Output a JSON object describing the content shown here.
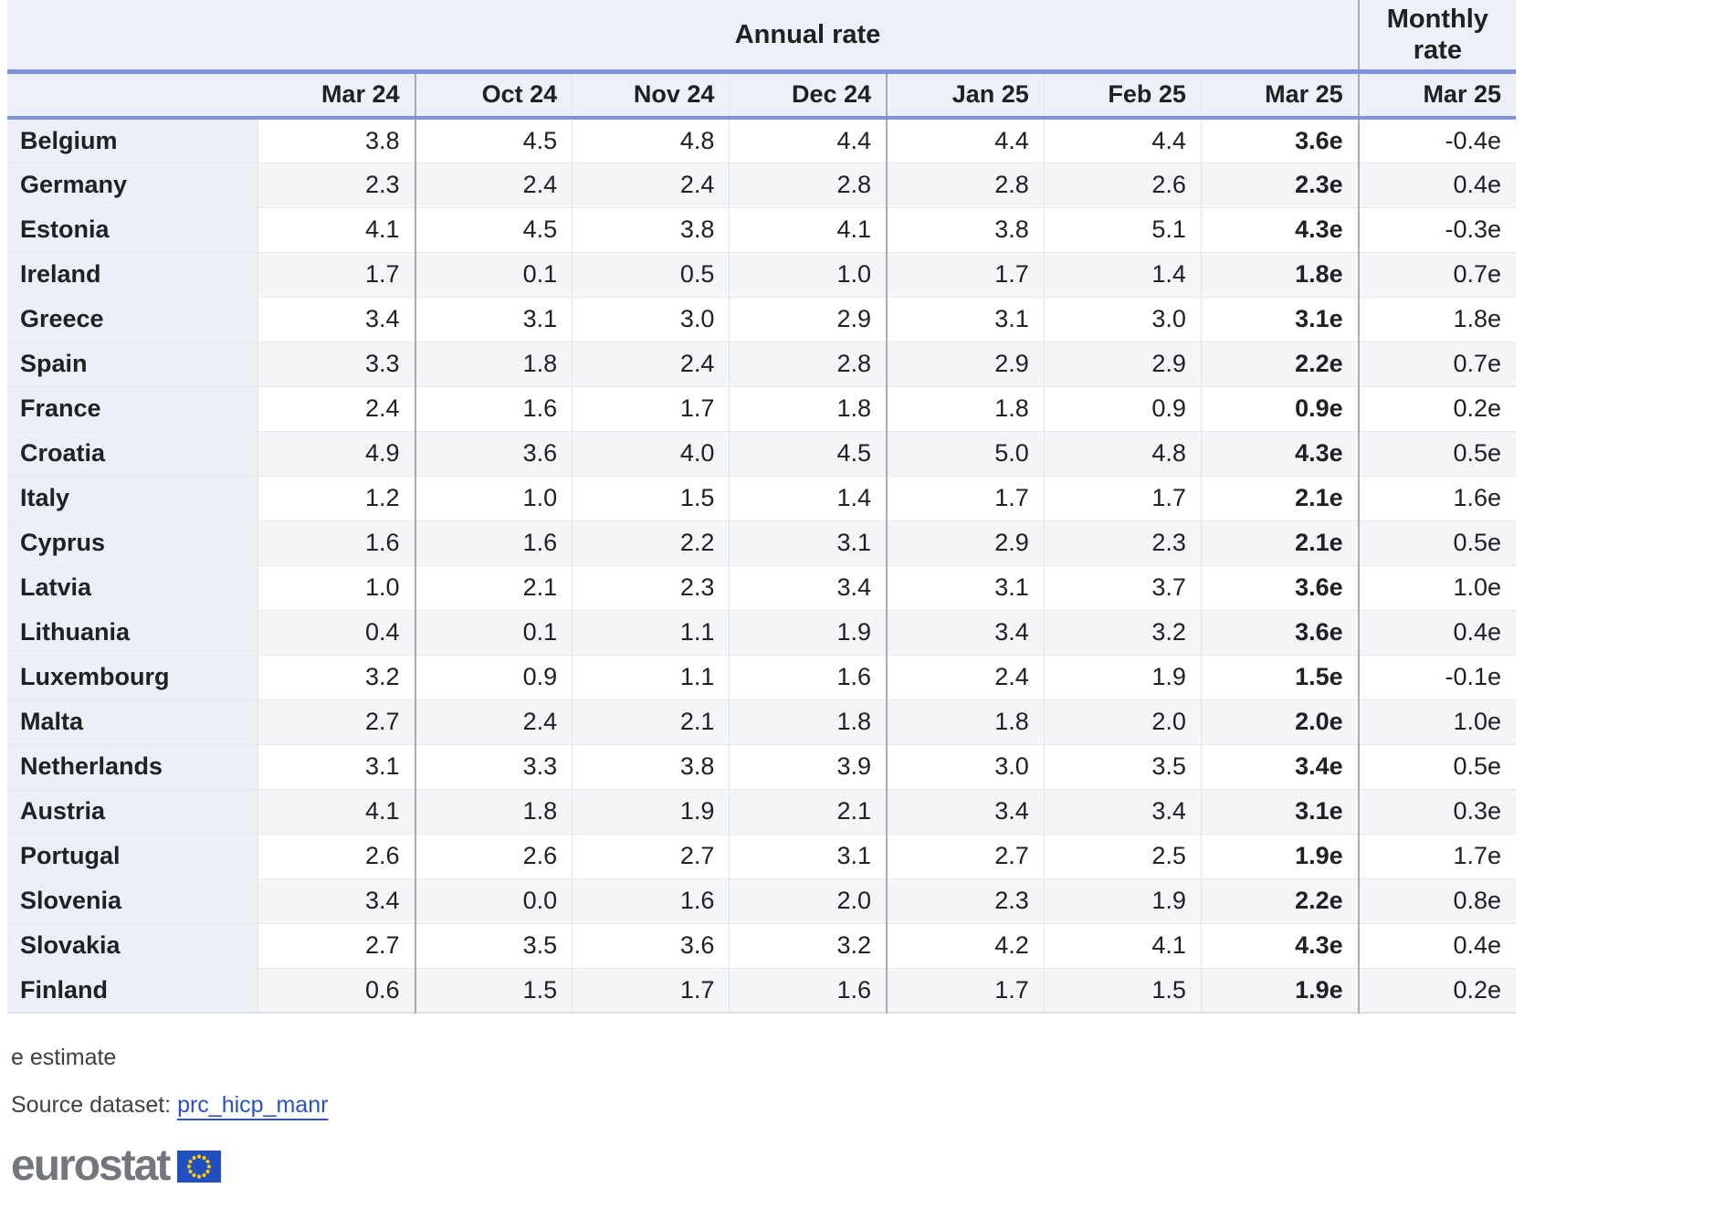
{
  "chart_data": {
    "type": "table",
    "annual_header": "Annual rate",
    "monthly_header": "Monthly rate",
    "annual_columns": [
      "Mar 24",
      "Oct 24",
      "Nov 24",
      "Dec 24",
      "Jan 25",
      "Feb 25",
      "Mar 25"
    ],
    "monthly_column": "Mar 25",
    "rows": [
      {
        "country": "Belgium",
        "values": [
          "3.8",
          "4.5",
          "4.8",
          "4.4",
          "4.4",
          "4.4",
          "3.6e"
        ],
        "monthly": "-0.4e"
      },
      {
        "country": "Germany",
        "values": [
          "2.3",
          "2.4",
          "2.4",
          "2.8",
          "2.8",
          "2.6",
          "2.3e"
        ],
        "monthly": "0.4e"
      },
      {
        "country": "Estonia",
        "values": [
          "4.1",
          "4.5",
          "3.8",
          "4.1",
          "3.8",
          "5.1",
          "4.3e"
        ],
        "monthly": "-0.3e"
      },
      {
        "country": "Ireland",
        "values": [
          "1.7",
          "0.1",
          "0.5",
          "1.0",
          "1.7",
          "1.4",
          "1.8e"
        ],
        "monthly": "0.7e"
      },
      {
        "country": "Greece",
        "values": [
          "3.4",
          "3.1",
          "3.0",
          "2.9",
          "3.1",
          "3.0",
          "3.1e"
        ],
        "monthly": "1.8e"
      },
      {
        "country": "Spain",
        "values": [
          "3.3",
          "1.8",
          "2.4",
          "2.8",
          "2.9",
          "2.9",
          "2.2e"
        ],
        "monthly": "0.7e"
      },
      {
        "country": "France",
        "values": [
          "2.4",
          "1.6",
          "1.7",
          "1.8",
          "1.8",
          "0.9",
          "0.9e"
        ],
        "monthly": "0.2e"
      },
      {
        "country": "Croatia",
        "values": [
          "4.9",
          "3.6",
          "4.0",
          "4.5",
          "5.0",
          "4.8",
          "4.3e"
        ],
        "monthly": "0.5e"
      },
      {
        "country": "Italy",
        "values": [
          "1.2",
          "1.0",
          "1.5",
          "1.4",
          "1.7",
          "1.7",
          "2.1e"
        ],
        "monthly": "1.6e"
      },
      {
        "country": "Cyprus",
        "values": [
          "1.6",
          "1.6",
          "2.2",
          "3.1",
          "2.9",
          "2.3",
          "2.1e"
        ],
        "monthly": "0.5e"
      },
      {
        "country": "Latvia",
        "values": [
          "1.0",
          "2.1",
          "2.3",
          "3.4",
          "3.1",
          "3.7",
          "3.6e"
        ],
        "monthly": "1.0e"
      },
      {
        "country": "Lithuania",
        "values": [
          "0.4",
          "0.1",
          "1.1",
          "1.9",
          "3.4",
          "3.2",
          "3.6e"
        ],
        "monthly": "0.4e"
      },
      {
        "country": "Luxembourg",
        "values": [
          "3.2",
          "0.9",
          "1.1",
          "1.6",
          "2.4",
          "1.9",
          "1.5e"
        ],
        "monthly": "-0.1e"
      },
      {
        "country": "Malta",
        "values": [
          "2.7",
          "2.4",
          "2.1",
          "1.8",
          "1.8",
          "2.0",
          "2.0e"
        ],
        "monthly": "1.0e"
      },
      {
        "country": "Netherlands",
        "values": [
          "3.1",
          "3.3",
          "3.8",
          "3.9",
          "3.0",
          "3.5",
          "3.4e"
        ],
        "monthly": "0.5e"
      },
      {
        "country": "Austria",
        "values": [
          "4.1",
          "1.8",
          "1.9",
          "2.1",
          "3.4",
          "3.4",
          "3.1e"
        ],
        "monthly": "0.3e"
      },
      {
        "country": "Portugal",
        "values": [
          "2.6",
          "2.6",
          "2.7",
          "3.1",
          "2.7",
          "2.5",
          "1.9e"
        ],
        "monthly": "1.7e"
      },
      {
        "country": "Slovenia",
        "values": [
          "3.4",
          "0.0",
          "1.6",
          "2.0",
          "2.3",
          "1.9",
          "2.2e"
        ],
        "monthly": "0.8e"
      },
      {
        "country": "Slovakia",
        "values": [
          "2.7",
          "3.5",
          "3.6",
          "3.2",
          "4.2",
          "4.1",
          "4.3e"
        ],
        "monthly": "0.4e"
      },
      {
        "country": "Finland",
        "values": [
          "0.6",
          "1.5",
          "1.7",
          "1.6",
          "1.7",
          "1.5",
          "1.9e"
        ],
        "monthly": "0.2e"
      }
    ]
  },
  "footer": {
    "note": "e estimate",
    "source_label": "Source dataset:",
    "source_link": "prc_hicp_manr",
    "logo_text": "eurostat"
  },
  "colors": {
    "accent_blue": "#7e93d9",
    "header_bg": "#eef0f8",
    "country_col_bg": "#edeff7",
    "stripe_grey": "#f4f5f7",
    "group_separator": "#aaacb1",
    "link_blue": "#2b50c8",
    "logo_grey": "#73777c",
    "flag_blue": "#2050c0",
    "flag_star_yellow": "#ffcc00"
  }
}
